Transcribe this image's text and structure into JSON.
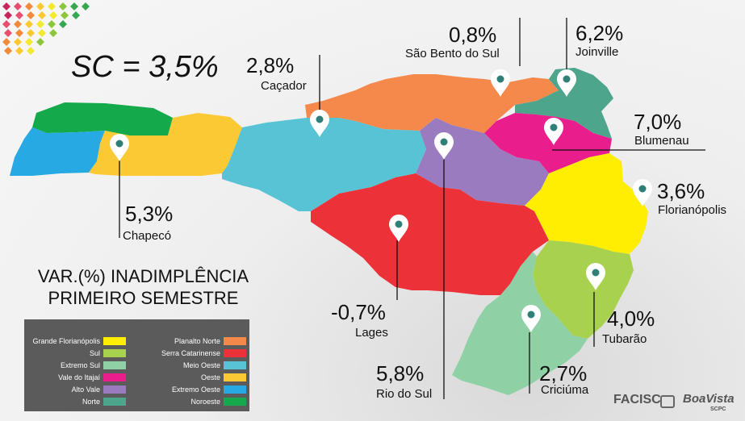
{
  "headline": "SC = 3,5%",
  "subtitle": [
    "VAR.(%) INADIMPLÊNCIA",
    "PRIMEIRO SEMESTRE"
  ],
  "cities": [
    {
      "id": "chapeco",
      "pct": "5,3%",
      "name": "Chapecó"
    },
    {
      "id": "cacador",
      "pct": "2,8%",
      "name": "Caçador"
    },
    {
      "id": "sao-bento",
      "pct": "0,8%",
      "name": "São Bento do Sul"
    },
    {
      "id": "joinville",
      "pct": "6,2%",
      "name": "Joinville"
    },
    {
      "id": "blumenau",
      "pct": "7,0%",
      "name": "Blumenau"
    },
    {
      "id": "florianopolis",
      "pct": "3,6%",
      "name": "Florianópolis"
    },
    {
      "id": "lages",
      "pct": "-0,7%",
      "name": "Lages"
    },
    {
      "id": "rio-do-sul",
      "pct": "5,8%",
      "name": "Rio do Sul"
    },
    {
      "id": "criciuma",
      "pct": "2,7%",
      "name": "Criciúma"
    },
    {
      "id": "tubarao",
      "pct": "4,0%",
      "name": "Tubarão"
    }
  ],
  "legend": [
    {
      "label": "Grande Florianópolis",
      "color": "#ffee00"
    },
    {
      "label": "Sul",
      "color": "#a8d14e"
    },
    {
      "label": "Extremo Sul",
      "color": "#8fd1a4"
    },
    {
      "label": "Vale do Itajaí",
      "color": "#e91e8c"
    },
    {
      "label": "Alto Vale",
      "color": "#9b7bbf"
    },
    {
      "label": "Norte",
      "color": "#4da58c"
    },
    {
      "label": "Planalto Norte",
      "color": "#f5894b"
    },
    {
      "label": "Serra Catarinense",
      "color": "#ec3138"
    },
    {
      "label": "Meio Oeste",
      "color": "#57c3d4"
    },
    {
      "label": "Oeste",
      "color": "#fbc934"
    },
    {
      "label": "Extremo Oeste",
      "color": "#27a9e4"
    },
    {
      "label": "Noroeste",
      "color": "#14a94a"
    }
  ],
  "logos": {
    "facisc": "FACISC",
    "boavista": "BoaVista",
    "boavista_sub": "SCPC"
  },
  "dots_colors": [
    "#c8275e",
    "#e84f6f",
    "#f28a3b",
    "#f9c92f",
    "#f3e92e",
    "#8cc63f",
    "#36a852"
  ]
}
